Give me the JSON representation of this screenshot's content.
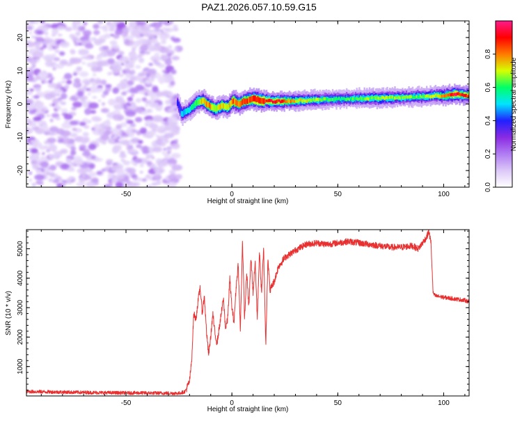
{
  "title": "PAZ1.2026.057.10.59.G15",
  "colormap": {
    "stops": [
      "#ffffff",
      "#dcc8f8",
      "#b07cf2",
      "#8a2be2",
      "#2020ff",
      "#00e5ff",
      "#00ff66",
      "#d6ff00",
      "#ff7a00",
      "#ff0000",
      "#ff1a8c"
    ]
  },
  "chart_data": [
    {
      "type": "heatmap",
      "name": "spectrogram",
      "title": "PAZ1.2026.057.10.59.G15",
      "xlabel": "Height of straight line (km)",
      "ylabel": "Frequency (Hz)",
      "xlim": [
        -97,
        112
      ],
      "ylim": [
        -25,
        25
      ],
      "xticks": [
        -50,
        0,
        50,
        100
      ],
      "xtick_labels": [
        "-50",
        "0",
        "50",
        "100"
      ],
      "yticks": [
        -20,
        -10,
        0,
        10,
        20
      ],
      "ytick_labels": [
        "-20",
        "-10",
        "0",
        "10",
        "20"
      ],
      "noise_region_x": [
        -97,
        -27
      ],
      "ridge_x": [
        -26,
        -24,
        -20,
        -17,
        -14,
        -11,
        -8,
        -5,
        -2,
        0,
        3,
        6,
        10,
        14,
        20,
        30,
        50,
        70,
        90,
        95,
        100,
        105,
        112
      ],
      "ridge_frequency": [
        0.5,
        -3.0,
        -1.5,
        0.5,
        1.0,
        -0.5,
        -1.5,
        -0.5,
        -1.0,
        1.0,
        0.0,
        1.0,
        1.5,
        1.0,
        0.8,
        1.0,
        1.5,
        1.8,
        2.2,
        2.5,
        2.5,
        3.0,
        2.5
      ],
      "ridge_amplitude": [
        0.4,
        0.5,
        0.55,
        0.65,
        0.75,
        0.8,
        0.7,
        0.75,
        0.7,
        0.85,
        0.8,
        0.85,
        0.9,
        0.9,
        0.95,
        0.75,
        0.6,
        0.7,
        0.65,
        0.7,
        0.8,
        0.95,
        0.85
      ],
      "colorbar": {
        "label": "Normalized spectral amplitude",
        "range": [
          0,
          1
        ],
        "ticks": [
          0.0,
          0.2,
          0.4,
          0.6,
          0.8
        ],
        "tick_labels": [
          "0.0",
          "0.2",
          "0.4",
          "0.6",
          "0.8"
        ]
      }
    },
    {
      "type": "line",
      "name": "snr",
      "xlabel": "Height of straight line (km)",
      "ylabel": "SNR (10 * v/v)",
      "xlim": [
        -97,
        112
      ],
      "ylim": [
        0,
        5650
      ],
      "xticks": [
        -50,
        0,
        50,
        100
      ],
      "xtick_labels": [
        "-50",
        "0",
        "50",
        "100"
      ],
      "yticks": [
        1000,
        2000,
        3000,
        4000,
        5000
      ],
      "ytick_labels": [
        "1000",
        "2000",
        "3000",
        "4000",
        "5000"
      ],
      "series": [
        {
          "name": "SNR",
          "color": "#e83030",
          "x": [
            -97,
            -80,
            -60,
            -40,
            -25,
            -22,
            -20,
            -19,
            -18,
            -17,
            -16,
            -15,
            -14,
            -13,
            -12,
            -11,
            -10,
            -9,
            -8,
            -7,
            -6,
            -5,
            -4,
            -3,
            -2,
            -1,
            0,
            1,
            2,
            3,
            4,
            5,
            6,
            7,
            8,
            9,
            10,
            11,
            12,
            13,
            14,
            15,
            16,
            17,
            18,
            20,
            22,
            25,
            30,
            35,
            40,
            45,
            50,
            55,
            60,
            65,
            70,
            75,
            80,
            85,
            88,
            90,
            92,
            93,
            94,
            95,
            96,
            100,
            105,
            110,
            112
          ],
          "y": [
            150,
            130,
            110,
            100,
            90,
            150,
            500,
            1200,
            2800,
            2600,
            3200,
            3700,
            2800,
            3400,
            2200,
            1400,
            2000,
            2800,
            2100,
            1800,
            2300,
            2800,
            3300,
            2300,
            2600,
            4000,
            3000,
            2500,
            3700,
            4500,
            2200,
            5300,
            2600,
            4200,
            3000,
            4700,
            3500,
            4600,
            2600,
            4900,
            3500,
            5000,
            1700,
            4700,
            3600,
            3900,
            4400,
            4700,
            4950,
            5150,
            5200,
            5150,
            5200,
            5250,
            5200,
            5150,
            5100,
            5050,
            5050,
            5100,
            5000,
            5200,
            5400,
            5600,
            5200,
            3500,
            3400,
            3350,
            3300,
            3250,
            3200
          ]
        }
      ]
    }
  ]
}
